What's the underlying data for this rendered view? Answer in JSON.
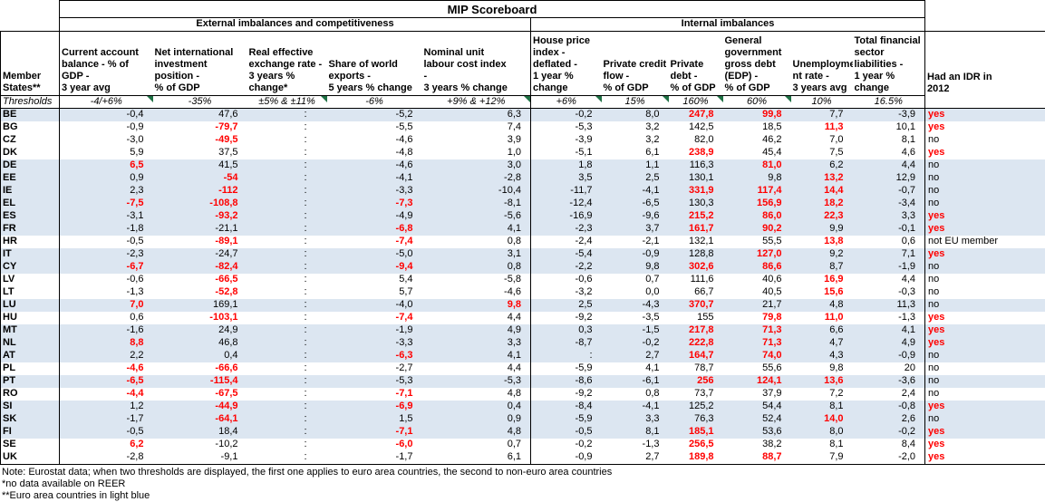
{
  "title": "MIP Scoreboard",
  "group_external": "External imbalances and competitiveness",
  "group_internal": "Internal imbalances",
  "member_header": "Member\nStates**",
  "thresholds_label": "Thresholds",
  "idr_header": "Had an IDR in\n2012",
  "columns": [
    {
      "header": "Current account\nbalance - % of GDP -\n3 year avg",
      "threshold": "-4/+6%",
      "marker": true
    },
    {
      "header": "Net international\ninvestment\nposition -\n% of GDP",
      "threshold": "-35%",
      "marker": false
    },
    {
      "header": "Real effective\nexchange rate -\n3 years %\nchange*",
      "threshold": "±5% & ±11%",
      "marker": true
    },
    {
      "header": "Share of world\nexports -\n5 years % change",
      "threshold": "-6%",
      "marker": false
    },
    {
      "header": "Nominal unit\nlabour cost index\n-\n3 years % change",
      "threshold": "+9% & +12%",
      "marker": true
    },
    {
      "header": "House price\nindex -\ndeflated -\n1 year %\nchange",
      "threshold": "+6%",
      "marker": true
    },
    {
      "header": "Private credit\nflow -\n% of GDP",
      "threshold": "15%",
      "marker": true
    },
    {
      "header": "Private\ndebt -\n% of GDP",
      "threshold": "160%",
      "marker": true
    },
    {
      "header": "General\ngovernment\ngross debt\n(EDP) -\n% of GDP",
      "threshold": "60%",
      "marker": true
    },
    {
      "header": "Unemployme\nnt rate -\n3 years avg",
      "threshold": "10%",
      "marker": false
    },
    {
      "header": "Total financial\nsector\nliabilities -\n1 year %\nchange",
      "threshold": "16.5%",
      "marker": false
    }
  ],
  "rows": [
    {
      "code": "BE",
      "euro": true,
      "values": [
        "-0,4",
        "47,6",
        ":",
        "-5,2",
        "6,3",
        "-0,2",
        "8,0",
        "247,8",
        "99,8",
        "7,7",
        "-3,9",
        "yes"
      ],
      "red": [
        0,
        0,
        0,
        0,
        0,
        0,
        0,
        1,
        1,
        0,
        0,
        1
      ]
    },
    {
      "code": "BG",
      "euro": false,
      "values": [
        "-0,9",
        "-79,7",
        ":",
        "-5,5",
        "7,4",
        "-5,3",
        "3,2",
        "142,5",
        "18,5",
        "11,3",
        "10,1",
        "yes"
      ],
      "red": [
        0,
        1,
        0,
        0,
        0,
        0,
        0,
        0,
        0,
        1,
        0,
        1
      ]
    },
    {
      "code": "CZ",
      "euro": false,
      "values": [
        "-3,0",
        "-49,5",
        ":",
        "-4,6",
        "3,9",
        "-3,9",
        "3,2",
        "82,0",
        "46,2",
        "7,0",
        "8,1",
        "no"
      ],
      "red": [
        0,
        1,
        0,
        0,
        0,
        0,
        0,
        0,
        0,
        0,
        0,
        0
      ]
    },
    {
      "code": "DK",
      "euro": false,
      "values": [
        "5,9",
        "37,5",
        ":",
        "-4,8",
        "1,0",
        "-5,1",
        "6,1",
        "238,9",
        "45,4",
        "7,5",
        "4,6",
        "yes"
      ],
      "red": [
        0,
        0,
        0,
        0,
        0,
        0,
        0,
        1,
        0,
        0,
        0,
        1
      ]
    },
    {
      "code": "DE",
      "euro": true,
      "values": [
        "6,5",
        "41,5",
        ":",
        "-4,6",
        "3,0",
        "1,8",
        "1,1",
        "116,3",
        "81,0",
        "6,2",
        "4,4",
        "no"
      ],
      "red": [
        1,
        0,
        0,
        0,
        0,
        0,
        0,
        0,
        1,
        0,
        0,
        0
      ]
    },
    {
      "code": "EE",
      "euro": true,
      "values": [
        "0,9",
        "-54",
        ":",
        "-4,1",
        "-2,8",
        "3,5",
        "2,5",
        "130,1",
        "9,8",
        "13,2",
        "12,9",
        "no"
      ],
      "red": [
        0,
        1,
        0,
        0,
        0,
        0,
        0,
        0,
        0,
        1,
        0,
        0
      ]
    },
    {
      "code": "IE",
      "euro": true,
      "values": [
        "2,3",
        "-112",
        ":",
        "-3,3",
        "-10,4",
        "-11,7",
        "-4,1",
        "331,9",
        "117,4",
        "14,4",
        "-0,7",
        "no"
      ],
      "red": [
        0,
        1,
        0,
        0,
        0,
        0,
        0,
        1,
        1,
        1,
        0,
        0
      ]
    },
    {
      "code": "EL",
      "euro": true,
      "values": [
        "-7,5",
        "-108,8",
        ":",
        "-7,3",
        "-8,1",
        "-12,4",
        "-6,5",
        "130,3",
        "156,9",
        "18,2",
        "-3,4",
        "no"
      ],
      "red": [
        1,
        1,
        0,
        1,
        0,
        0,
        0,
        0,
        1,
        1,
        0,
        0
      ]
    },
    {
      "code": "ES",
      "euro": true,
      "values": [
        "-3,1",
        "-93,2",
        ":",
        "-4,9",
        "-5,6",
        "-16,9",
        "-9,6",
        "215,2",
        "86,0",
        "22,3",
        "3,3",
        "yes"
      ],
      "red": [
        0,
        1,
        0,
        0,
        0,
        0,
        0,
        1,
        1,
        1,
        0,
        1
      ]
    },
    {
      "code": "FR",
      "euro": true,
      "values": [
        "-1,8",
        "-21,1",
        ":",
        "-6,8",
        "4,1",
        "-2,3",
        "3,7",
        "161,7",
        "90,2",
        "9,9",
        "-0,1",
        "yes"
      ],
      "red": [
        0,
        0,
        0,
        1,
        0,
        0,
        0,
        1,
        1,
        0,
        0,
        1
      ]
    },
    {
      "code": "HR",
      "euro": false,
      "values": [
        "-0,5",
        "-89,1",
        ":",
        "-7,4",
        "0,8",
        "-2,4",
        "-2,1",
        "132,1",
        "55,5",
        "13,8",
        "0,6",
        "not EU member"
      ],
      "red": [
        0,
        1,
        0,
        1,
        0,
        0,
        0,
        0,
        0,
        1,
        0,
        0
      ]
    },
    {
      "code": "IT",
      "euro": true,
      "values": [
        "-2,3",
        "-24,7",
        ":",
        "-5,0",
        "3,1",
        "-5,4",
        "-0,9",
        "128,8",
        "127,0",
        "9,2",
        "7,1",
        "yes"
      ],
      "red": [
        0,
        0,
        0,
        0,
        0,
        0,
        0,
        0,
        1,
        0,
        0,
        1
      ]
    },
    {
      "code": "CY",
      "euro": true,
      "values": [
        "-6,7",
        "-82,4",
        ":",
        "-9,4",
        "0,8",
        "-2,2",
        "9,8",
        "302,6",
        "86,6",
        "8,7",
        "-1,9",
        "no"
      ],
      "red": [
        1,
        1,
        0,
        1,
        0,
        0,
        0,
        1,
        1,
        0,
        0,
        0
      ]
    },
    {
      "code": "LV",
      "euro": false,
      "values": [
        "-0,6",
        "-66,5",
        ":",
        "5,4",
        "-5,8",
        "-0,6",
        "0,7",
        "111,6",
        "40,6",
        "16,9",
        "4,4",
        "no"
      ],
      "red": [
        0,
        1,
        0,
        0,
        0,
        0,
        0,
        0,
        0,
        1,
        0,
        0
      ]
    },
    {
      "code": "LT",
      "euro": false,
      "values": [
        "-1,3",
        "-52,8",
        ":",
        "5,7",
        "-4,6",
        "-3,2",
        "0,0",
        "66,7",
        "40,5",
        "15,6",
        "-0,3",
        "no"
      ],
      "red": [
        0,
        1,
        0,
        0,
        0,
        0,
        0,
        0,
        0,
        1,
        0,
        0
      ]
    },
    {
      "code": "LU",
      "euro": true,
      "values": [
        "7,0",
        "169,1",
        ":",
        "-4,0",
        "9,8",
        "2,5",
        "-4,3",
        "370,7",
        "21,7",
        "4,8",
        "11,3",
        "no"
      ],
      "red": [
        1,
        0,
        0,
        0,
        1,
        0,
        0,
        1,
        0,
        0,
        0,
        0
      ]
    },
    {
      "code": "HU",
      "euro": false,
      "values": [
        "0,6",
        "-103,1",
        ":",
        "-7,4",
        "4,4",
        "-9,2",
        "-3,5",
        "155",
        "79,8",
        "11,0",
        "-1,3",
        "yes"
      ],
      "red": [
        0,
        1,
        0,
        1,
        0,
        0,
        0,
        0,
        1,
        1,
        0,
        1
      ]
    },
    {
      "code": "MT",
      "euro": true,
      "values": [
        "-1,6",
        "24,9",
        ":",
        "-1,9",
        "4,9",
        "0,3",
        "-1,5",
        "217,8",
        "71,3",
        "6,6",
        "4,1",
        "yes"
      ],
      "red": [
        0,
        0,
        0,
        0,
        0,
        0,
        0,
        1,
        1,
        0,
        0,
        1
      ]
    },
    {
      "code": "NL",
      "euro": true,
      "values": [
        "8,8",
        "46,8",
        ":",
        "-3,3",
        "3,3",
        "-8,7",
        "-0,2",
        "222,8",
        "71,3",
        "4,7",
        "4,9",
        "yes"
      ],
      "red": [
        1,
        0,
        0,
        0,
        0,
        0,
        0,
        1,
        1,
        0,
        0,
        1
      ]
    },
    {
      "code": "AT",
      "euro": true,
      "values": [
        "2,2",
        "0,4",
        ":",
        "-6,3",
        "4,1",
        ":",
        "2,7",
        "164,7",
        "74,0",
        "4,3",
        "-0,9",
        "no"
      ],
      "red": [
        0,
        0,
        0,
        1,
        0,
        0,
        0,
        1,
        1,
        0,
        0,
        0
      ]
    },
    {
      "code": "PL",
      "euro": false,
      "values": [
        "-4,6",
        "-66,6",
        ":",
        "-2,7",
        "4,4",
        "-5,9",
        "4,1",
        "78,7",
        "55,6",
        "9,8",
        "20",
        "no"
      ],
      "red": [
        1,
        1,
        0,
        0,
        0,
        0,
        0,
        0,
        0,
        0,
        0,
        0
      ]
    },
    {
      "code": "PT",
      "euro": true,
      "values": [
        "-6,5",
        "-115,4",
        ":",
        "-5,3",
        "-5,3",
        "-8,6",
        "-6,1",
        "256",
        "124,1",
        "13,6",
        "-3,6",
        "no"
      ],
      "red": [
        1,
        1,
        0,
        0,
        0,
        0,
        0,
        1,
        1,
        1,
        0,
        0
      ]
    },
    {
      "code": "RO",
      "euro": false,
      "values": [
        "-4,4",
        "-67,5",
        ":",
        "-7,1",
        "4,8",
        "-9,2",
        "0,8",
        "73,7",
        "37,9",
        "7,2",
        "2,4",
        "no"
      ],
      "red": [
        1,
        1,
        0,
        1,
        0,
        0,
        0,
        0,
        0,
        0,
        0,
        0
      ]
    },
    {
      "code": "SI",
      "euro": true,
      "values": [
        "1,2",
        "-44,9",
        ":",
        "-6,9",
        "0,4",
        "-8,4",
        "-4,1",
        "125,2",
        "54,4",
        "8,1",
        "-0,8",
        "yes"
      ],
      "red": [
        0,
        1,
        0,
        1,
        0,
        0,
        0,
        0,
        0,
        0,
        0,
        1
      ]
    },
    {
      "code": "SK",
      "euro": true,
      "values": [
        "-1,7",
        "-64,1",
        ":",
        "1,5",
        "0,9",
        "-5,9",
        "3,3",
        "76,3",
        "52,4",
        "14,0",
        "2,6",
        "no"
      ],
      "red": [
        0,
        1,
        0,
        0,
        0,
        0,
        0,
        0,
        0,
        1,
        0,
        0
      ]
    },
    {
      "code": "FI",
      "euro": true,
      "values": [
        "-0,5",
        "18,4",
        ":",
        "-7,1",
        "4,8",
        "-0,5",
        "8,1",
        "185,1",
        "53,6",
        "8,0",
        "-0,2",
        "yes"
      ],
      "red": [
        0,
        0,
        0,
        1,
        0,
        0,
        0,
        1,
        0,
        0,
        0,
        1
      ]
    },
    {
      "code": "SE",
      "euro": false,
      "values": [
        "6,2",
        "-10,2",
        ":",
        "-6,0",
        "0,7",
        "-0,2",
        "-1,3",
        "256,5",
        "38,2",
        "8,1",
        "8,4",
        "yes"
      ],
      "red": [
        1,
        0,
        0,
        1,
        0,
        0,
        0,
        1,
        0,
        0,
        0,
        1
      ]
    },
    {
      "code": "UK",
      "euro": false,
      "values": [
        "-2,8",
        "-9,1",
        ":",
        "-1,7",
        "6,1",
        "-0,9",
        "2,7",
        "189,8",
        "88,7",
        "7,9",
        "-2,0",
        "yes"
      ],
      "red": [
        0,
        0,
        0,
        0,
        0,
        0,
        0,
        1,
        1,
        0,
        0,
        1
      ]
    }
  ],
  "notes": [
    "Note: Eurostat data; when two thresholds are displayed, the first one applies to euro area countries, the second to non-euro area countries",
    "*no data available on REER",
    "**Euro area countries in light blue"
  ],
  "colors": {
    "euro_row_fill": "#dce6f1",
    "alert_red": "#ff0000",
    "marker_green": "#1f7145"
  }
}
